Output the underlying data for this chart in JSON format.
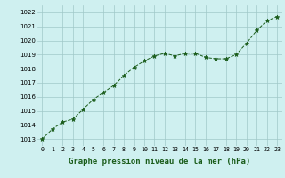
{
  "x": [
    0,
    1,
    2,
    3,
    4,
    5,
    6,
    7,
    8,
    9,
    10,
    11,
    12,
    13,
    14,
    15,
    16,
    17,
    18,
    19,
    20,
    21,
    22,
    23
  ],
  "y": [
    1013.0,
    1013.7,
    1014.2,
    1014.4,
    1015.1,
    1015.8,
    1016.3,
    1016.8,
    1017.5,
    1018.1,
    1018.55,
    1018.9,
    1019.1,
    1018.9,
    1019.1,
    1019.1,
    1018.8,
    1018.7,
    1018.7,
    1019.0,
    1019.8,
    1020.7,
    1021.4,
    1021.7
  ],
  "line_color": "#1a5c1a",
  "marker_color": "#1a5c1a",
  "bg_color": "#cff0f0",
  "grid_color": "#a0c8c8",
  "xlabel": "Graphe pression niveau de la mer (hPa)",
  "xlabel_fontsize": 6.5,
  "ylabel_ticks": [
    1013,
    1014,
    1015,
    1016,
    1017,
    1018,
    1019,
    1020,
    1021,
    1022
  ],
  "xlim": [
    -0.5,
    23.5
  ],
  "ylim": [
    1012.5,
    1022.5
  ],
  "xticks": [
    0,
    1,
    2,
    3,
    4,
    5,
    6,
    7,
    8,
    9,
    10,
    11,
    12,
    13,
    14,
    15,
    16,
    17,
    18,
    19,
    20,
    21,
    22,
    23
  ],
  "xtick_labels": [
    "0",
    "1",
    "2",
    "3",
    "4",
    "5",
    "6",
    "7",
    "8",
    "9",
    "10",
    "11",
    "12",
    "13",
    "14",
    "15",
    "16",
    "17",
    "18",
    "19",
    "20",
    "21",
    "22",
    "23"
  ]
}
